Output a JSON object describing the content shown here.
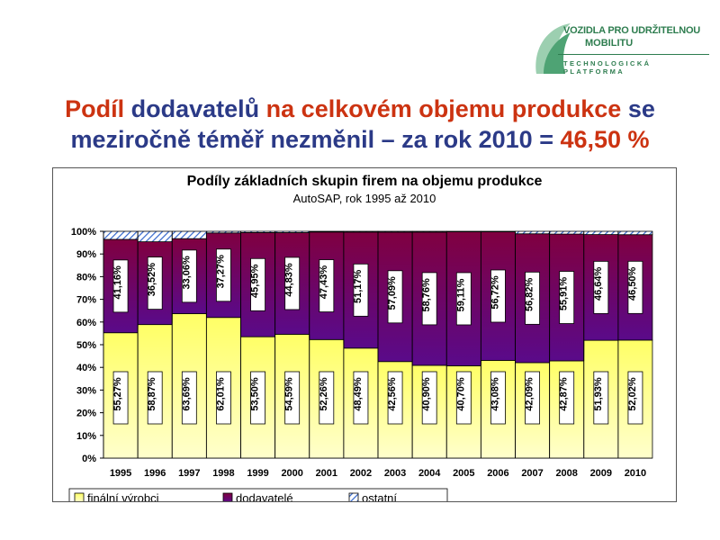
{
  "logo": {
    "line1": "VOZIDLA PRO UDRŽITELNOU",
    "line2": "MOBILITU",
    "line3": "TECHNOLOGICKÁ PLATFORMA"
  },
  "headline": {
    "part1": "Podíl ",
    "part2": "dodavatelů",
    "part3": " na celkovém objemu produkce",
    "part4": " se",
    "part5": "meziročně téměř nezměnil – za rok 2010 = ",
    "part6": "46,50 %"
  },
  "colors": {
    "finalni": "#ffffcc",
    "finalni_mid": "#ffff66",
    "dodavatele_dark": "#800040",
    "dodavatele_mid": "#5a0a8a",
    "ostatni": "#99ccff",
    "headline_red": "#cc3311",
    "headline_blue": "#2b3a87"
  },
  "chart_data": {
    "type": "bar",
    "stacked": true,
    "title": "Podíly základních skupin firem na objemu produkce",
    "subtitle": "AutoSAP, rok 1995 až 2010",
    "categories": [
      "1995",
      "1996",
      "1997",
      "1998",
      "1999",
      "2000",
      "2001",
      "2002",
      "2003",
      "2004",
      "2005",
      "2006",
      "2007",
      "2008",
      "2009",
      "2010"
    ],
    "series": [
      {
        "name": "finální výrobci",
        "values": [
          55.27,
          58.87,
          63.69,
          62.01,
          53.5,
          54.59,
          52.26,
          48.49,
          42.56,
          40.9,
          40.7,
          43.08,
          42.09,
          42.87,
          51.93,
          52.02
        ],
        "labels": [
          "55,27%",
          "58,87%",
          "63,69%",
          "62,01%",
          "53,50%",
          "54,59%",
          "52,26%",
          "48,49%",
          "42,56%",
          "40,90%",
          "40,70%",
          "43,08%",
          "42,09%",
          "42,87%",
          "51,93%",
          "52,02%"
        ]
      },
      {
        "name": "dodavatelé",
        "values": [
          41.16,
          36.52,
          33.06,
          37.27,
          45.95,
          44.83,
          47.43,
          51.17,
          57.09,
          58.76,
          59.11,
          56.72,
          56.82,
          55.91,
          46.64,
          46.5
        ],
        "labels": [
          "41,16%",
          "36,52%",
          "33,06%",
          "37,27%",
          "45,95%",
          "44,83%",
          "47,43%",
          "51,17%",
          "57,09%",
          "58,76%",
          "59,11%",
          "56,72%",
          "56,82%",
          "55,91%",
          "46,64%",
          "46,50%"
        ]
      },
      {
        "name": "ostatní",
        "values": [
          3.57,
          4.61,
          3.25,
          0.72,
          0.55,
          0.58,
          0.31,
          0.34,
          0.35,
          0.34,
          0.19,
          0.2,
          1.09,
          1.22,
          1.43,
          1.48
        ]
      }
    ],
    "yticks": [
      "0%",
      "10%",
      "20%",
      "30%",
      "40%",
      "50%",
      "60%",
      "70%",
      "80%",
      "90%",
      "100%"
    ],
    "ylim": [
      0,
      100
    ],
    "grid": false,
    "legend_position": "bottom-left"
  }
}
